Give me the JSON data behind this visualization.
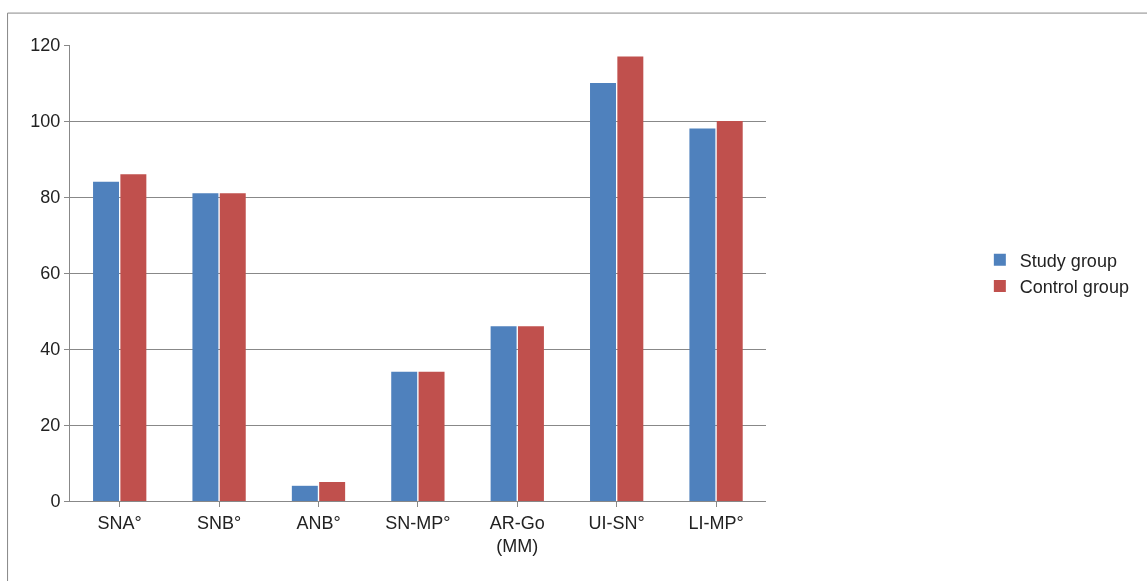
{
  "chart_data": {
    "type": "bar",
    "categories": [
      "SNA°",
      "SNB°",
      "ANB°",
      "SN-MP°",
      "AR-Go (MM)",
      "UI-SN°",
      "LI-MP°"
    ],
    "series": [
      {
        "name": "Study group",
        "color": "#4f81bd",
        "values": [
          84,
          81,
          4,
          34,
          46,
          110,
          98
        ]
      },
      {
        "name": "Control group",
        "color": "#c0504d",
        "values": [
          86,
          81,
          5,
          34,
          46,
          117,
          100
        ]
      }
    ],
    "ylim": [
      0,
      120
    ],
    "yticks": [
      0,
      20,
      40,
      60,
      80,
      100,
      120
    ],
    "grid": "y",
    "legend": "right"
  }
}
